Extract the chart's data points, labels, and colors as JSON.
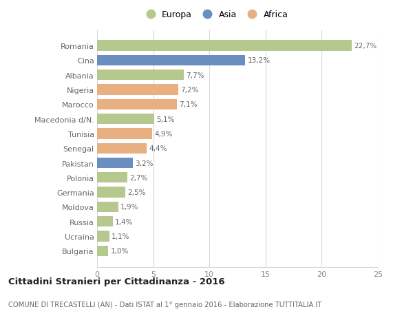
{
  "categories": [
    "Romania",
    "Cina",
    "Albania",
    "Nigeria",
    "Marocco",
    "Macedonia d/N.",
    "Tunisia",
    "Senegal",
    "Pakistan",
    "Polonia",
    "Germania",
    "Moldova",
    "Russia",
    "Ucraina",
    "Bulgaria"
  ],
  "values": [
    22.7,
    13.2,
    7.7,
    7.2,
    7.1,
    5.1,
    4.9,
    4.4,
    3.2,
    2.7,
    2.5,
    1.9,
    1.4,
    1.1,
    1.0
  ],
  "labels": [
    "22,7%",
    "13,2%",
    "7,7%",
    "7,2%",
    "7,1%",
    "5,1%",
    "4,9%",
    "4,4%",
    "3,2%",
    "2,7%",
    "2,5%",
    "1,9%",
    "1,4%",
    "1,1%",
    "1,0%"
  ],
  "continent": [
    "Europa",
    "Asia",
    "Europa",
    "Africa",
    "Africa",
    "Europa",
    "Africa",
    "Africa",
    "Asia",
    "Europa",
    "Europa",
    "Europa",
    "Europa",
    "Europa",
    "Europa"
  ],
  "colors": {
    "Europa": "#b5c98e",
    "Asia": "#6a8ebf",
    "Africa": "#e8b080"
  },
  "title": "Cittadini Stranieri per Cittadinanza - 2016",
  "subtitle": "COMUNE DI TRECASTELLI (AN) - Dati ISTAT al 1° gennaio 2016 - Elaborazione TUTTITALIA.IT",
  "xlim": [
    0,
    25
  ],
  "xticks": [
    0,
    5,
    10,
    15,
    20,
    25
  ],
  "background_color": "#ffffff",
  "grid_color": "#d8d8d8",
  "bar_height": 0.72,
  "figsize": [
    6.0,
    4.6
  ],
  "dpi": 100
}
